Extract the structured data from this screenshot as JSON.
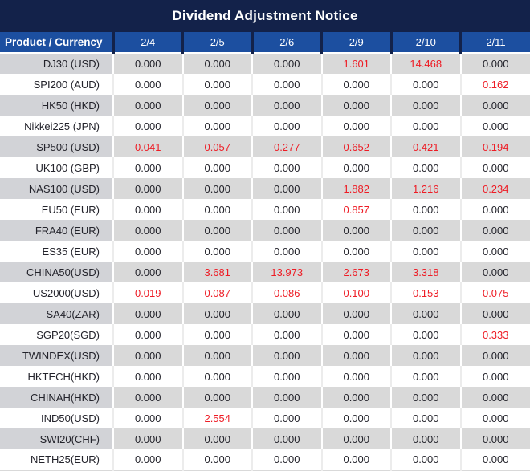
{
  "title": "Dividend Adjustment Notice",
  "colors": {
    "title_bg": "#13224a",
    "header_bg": "#1c4fa0",
    "row_alt_bg": "#d9d9d9",
    "row_alt_product_bg": "#d2d3d7",
    "row_bg": "#ffffff",
    "value_red": "#ee1c25",
    "text_dark": "#23232b",
    "header_text": "#ffffff"
  },
  "table": {
    "product_header": "Product / Currency",
    "date_headers": [
      "2/4",
      "2/5",
      "2/6",
      "2/9",
      "2/10",
      "2/11"
    ],
    "rows": [
      {
        "product": "DJ30 (USD)",
        "values": [
          "0.000",
          "0.000",
          "0.000",
          "1.601",
          "14.468",
          "0.000"
        ],
        "red": [
          0,
          0,
          0,
          1,
          1,
          0
        ]
      },
      {
        "product": "SPI200 (AUD)",
        "values": [
          "0.000",
          "0.000",
          "0.000",
          "0.000",
          "0.000",
          "0.162"
        ],
        "red": [
          0,
          0,
          0,
          0,
          0,
          1
        ]
      },
      {
        "product": "HK50 (HKD)",
        "values": [
          "0.000",
          "0.000",
          "0.000",
          "0.000",
          "0.000",
          "0.000"
        ],
        "red": [
          0,
          0,
          0,
          0,
          0,
          0
        ]
      },
      {
        "product": "Nikkei225 (JPN)",
        "values": [
          "0.000",
          "0.000",
          "0.000",
          "0.000",
          "0.000",
          "0.000"
        ],
        "red": [
          0,
          0,
          0,
          0,
          0,
          0
        ]
      },
      {
        "product": "SP500 (USD)",
        "values": [
          "0.041",
          "0.057",
          "0.277",
          "0.652",
          "0.421",
          "0.194"
        ],
        "red": [
          1,
          1,
          1,
          1,
          1,
          1
        ]
      },
      {
        "product": "UK100 (GBP)",
        "values": [
          "0.000",
          "0.000",
          "0.000",
          "0.000",
          "0.000",
          "0.000"
        ],
        "red": [
          0,
          0,
          0,
          0,
          0,
          0
        ]
      },
      {
        "product": "NAS100 (USD)",
        "values": [
          "0.000",
          "0.000",
          "0.000",
          "1.882",
          "1.216",
          "0.234"
        ],
        "red": [
          0,
          0,
          0,
          1,
          1,
          1
        ]
      },
      {
        "product": "EU50 (EUR)",
        "values": [
          "0.000",
          "0.000",
          "0.000",
          "0.857",
          "0.000",
          "0.000"
        ],
        "red": [
          0,
          0,
          0,
          1,
          0,
          0
        ]
      },
      {
        "product": "FRA40 (EUR)",
        "values": [
          "0.000",
          "0.000",
          "0.000",
          "0.000",
          "0.000",
          "0.000"
        ],
        "red": [
          0,
          0,
          0,
          0,
          0,
          0
        ]
      },
      {
        "product": "ES35 (EUR)",
        "values": [
          "0.000",
          "0.000",
          "0.000",
          "0.000",
          "0.000",
          "0.000"
        ],
        "red": [
          0,
          0,
          0,
          0,
          0,
          0
        ]
      },
      {
        "product": "CHINA50(USD)",
        "values": [
          "0.000",
          "3.681",
          "13.973",
          "2.673",
          "3.318",
          "0.000"
        ],
        "red": [
          0,
          1,
          1,
          1,
          1,
          0
        ]
      },
      {
        "product": "US2000(USD)",
        "values": [
          "0.019",
          "0.087",
          "0.086",
          "0.100",
          "0.153",
          "0.075"
        ],
        "red": [
          1,
          1,
          1,
          1,
          1,
          1
        ]
      },
      {
        "product": "SA40(ZAR)",
        "values": [
          "0.000",
          "0.000",
          "0.000",
          "0.000",
          "0.000",
          "0.000"
        ],
        "red": [
          0,
          0,
          0,
          0,
          0,
          0
        ]
      },
      {
        "product": "SGP20(SGD)",
        "values": [
          "0.000",
          "0.000",
          "0.000",
          "0.000",
          "0.000",
          "0.333"
        ],
        "red": [
          0,
          0,
          0,
          0,
          0,
          1
        ]
      },
      {
        "product": "TWINDEX(USD)",
        "values": [
          "0.000",
          "0.000",
          "0.000",
          "0.000",
          "0.000",
          "0.000"
        ],
        "red": [
          0,
          0,
          0,
          0,
          0,
          0
        ]
      },
      {
        "product": "HKTECH(HKD)",
        "values": [
          "0.000",
          "0.000",
          "0.000",
          "0.000",
          "0.000",
          "0.000"
        ],
        "red": [
          0,
          0,
          0,
          0,
          0,
          0
        ]
      },
      {
        "product": "CHINAH(HKD)",
        "values": [
          "0.000",
          "0.000",
          "0.000",
          "0.000",
          "0.000",
          "0.000"
        ],
        "red": [
          0,
          0,
          0,
          0,
          0,
          0
        ]
      },
      {
        "product": "IND50(USD)",
        "values": [
          "0.000",
          "2.554",
          "0.000",
          "0.000",
          "0.000",
          "0.000"
        ],
        "red": [
          0,
          1,
          0,
          0,
          0,
          0
        ]
      },
      {
        "product": "SWI20(CHF)",
        "values": [
          "0.000",
          "0.000",
          "0.000",
          "0.000",
          "0.000",
          "0.000"
        ],
        "red": [
          0,
          0,
          0,
          0,
          0,
          0
        ]
      },
      {
        "product": "NETH25(EUR)",
        "values": [
          "0.000",
          "0.000",
          "0.000",
          "0.000",
          "0.000",
          "0.000"
        ],
        "red": [
          0,
          0,
          0,
          0,
          0,
          0
        ]
      }
    ]
  }
}
